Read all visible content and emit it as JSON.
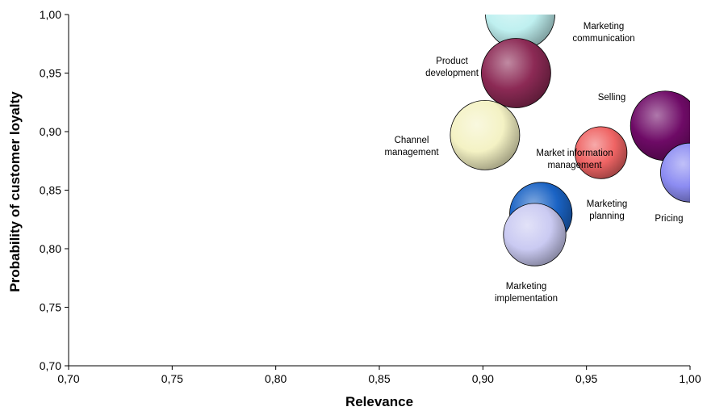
{
  "chart_data": {
    "type": "scatter",
    "subtype": "bubble",
    "title": "",
    "xlabel": "Relevance",
    "ylabel": "Probability of customer loyalty",
    "xlim": [
      0.7,
      1.0
    ],
    "ylim": [
      0.7,
      1.0
    ],
    "x_ticks": [
      "0,70",
      "0,75",
      "0,80",
      "0,85",
      "0,90",
      "0,95",
      "1,00"
    ],
    "y_ticks": [
      "0,70",
      "0,75",
      "0,80",
      "0,85",
      "0,90",
      "0,95",
      "1,00"
    ],
    "grid": false,
    "legend": "none",
    "series": [
      {
        "label": "Marketing communication",
        "x": 0.918,
        "y": 1.0,
        "size": 1.0,
        "color": "#bff0f0"
      },
      {
        "label": "Product development",
        "x": 0.916,
        "y": 0.95,
        "size": 1.0,
        "color": "#8c2a55"
      },
      {
        "label": "Channel management",
        "x": 0.901,
        "y": 0.897,
        "size": 1.0,
        "color": "#f4f2c4"
      },
      {
        "label": "Selling",
        "x": 0.988,
        "y": 0.905,
        "size": 1.0,
        "color": "#6e0a66"
      },
      {
        "label": "Pricing",
        "x": 1.0,
        "y": 0.865,
        "size": 0.85,
        "color": "#8c8cf2"
      },
      {
        "label": "Market information management",
        "x": 0.957,
        "y": 0.882,
        "size": 0.75,
        "color": "#ef6464"
      },
      {
        "label": "Marketing planning",
        "x": 0.928,
        "y": 0.83,
        "size": 0.9,
        "color": "#1a63c4"
      },
      {
        "label": "Marketing implementation",
        "x": 0.925,
        "y": 0.812,
        "size": 0.9,
        "color": "#cacaf2"
      }
    ],
    "labels": [
      {
        "lines": [
          "Marketing",
          "communication"
        ]
      },
      {
        "lines": [
          "Product",
          "development"
        ]
      },
      {
        "lines": [
          "Channel",
          "management"
        ]
      },
      {
        "lines": [
          "Selling"
        ]
      },
      {
        "lines": [
          "Pricing"
        ]
      },
      {
        "lines": [
          "Market information",
          "management"
        ]
      },
      {
        "lines": [
          "Marketing",
          "planning"
        ]
      },
      {
        "lines": [
          "Marketing",
          "implementation"
        ]
      }
    ]
  }
}
